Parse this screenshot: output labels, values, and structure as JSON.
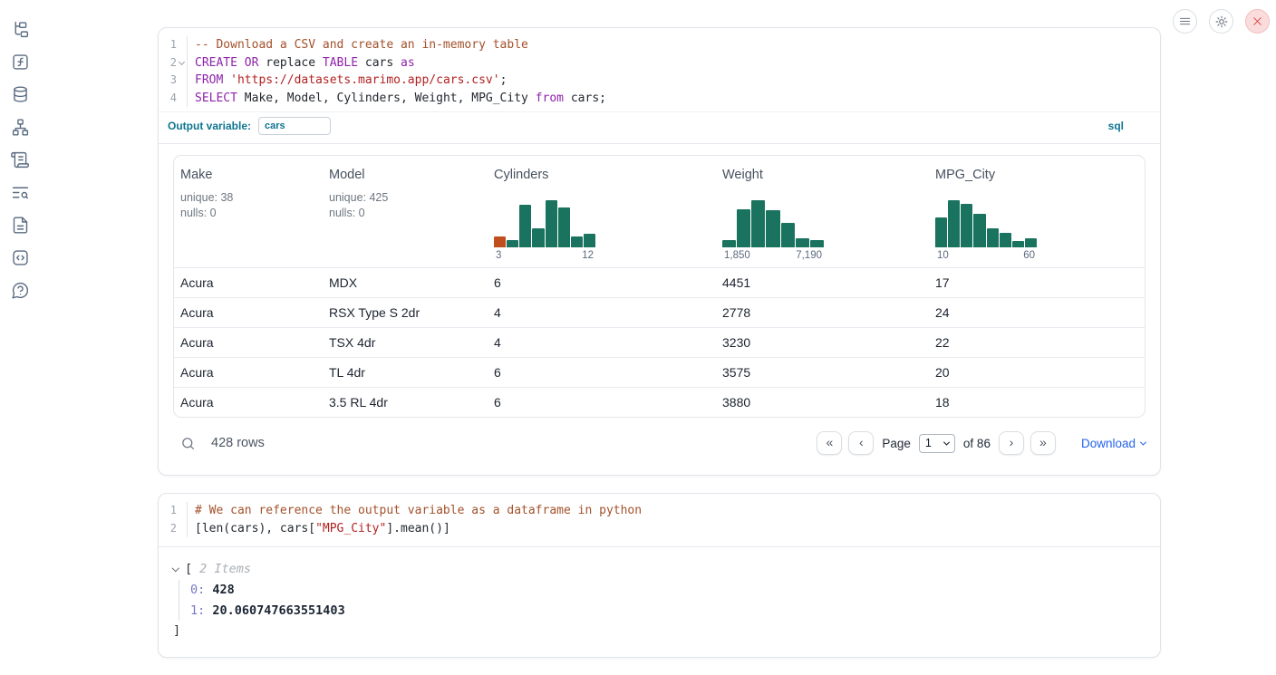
{
  "colors": {
    "histogram_bar": "#1a735f",
    "histogram_highlight": "#c14f1d",
    "accent_blue": "#2563eb",
    "label_teal": "#0e7490",
    "danger_red": "#d64545"
  },
  "sidebar": {
    "icons": [
      "file-tree",
      "function",
      "database",
      "network",
      "scroll",
      "search-list",
      "document",
      "code-box",
      "help"
    ]
  },
  "topbar": {
    "buttons": [
      "menu",
      "settings",
      "shutdown"
    ]
  },
  "cells": [
    {
      "language_badge": "sql",
      "meta_label": "Output variable:",
      "meta_value": "cars",
      "lines": [
        {
          "num": "1",
          "fold": false,
          "segments": [
            {
              "t": "-- Download a CSV and create an in-memory table",
              "c": "comment"
            }
          ]
        },
        {
          "num": "2",
          "fold": true,
          "segments": [
            {
              "t": "CREATE OR",
              "c": "keyword"
            },
            {
              "t": " replace ",
              "c": "plain"
            },
            {
              "t": "TABLE",
              "c": "keyword"
            },
            {
              "t": " cars ",
              "c": "plain"
            },
            {
              "t": "as",
              "c": "keyword"
            }
          ]
        },
        {
          "num": "3",
          "fold": false,
          "segments": [
            {
              "t": "FROM",
              "c": "keyword"
            },
            {
              "t": " ",
              "c": "plain"
            },
            {
              "t": "'https://datasets.marimo.app/cars.csv'",
              "c": "string"
            },
            {
              "t": ";",
              "c": "plain"
            }
          ]
        },
        {
          "num": "4",
          "fold": false,
          "segments": [
            {
              "t": "SELECT",
              "c": "keyword"
            },
            {
              "t": " Make, Model, Cylinders, Weight, MPG_City ",
              "c": "plain"
            },
            {
              "t": "from",
              "c": "keyword"
            },
            {
              "t": " cars;",
              "c": "plain"
            }
          ]
        }
      ]
    },
    {
      "lines": [
        {
          "num": "1",
          "fold": false,
          "segments": [
            {
              "t": "# We can reference the output variable as a dataframe in python",
              "c": "comment"
            }
          ]
        },
        {
          "num": "2",
          "fold": false,
          "segments": [
            {
              "t": "[len(cars), cars[",
              "c": "plain"
            },
            {
              "t": "\"MPG_City\"",
              "c": "string"
            },
            {
              "t": "].mean()]",
              "c": "plain"
            }
          ]
        }
      ]
    }
  ],
  "table": {
    "columns": [
      {
        "name": "Make",
        "stats": [
          "unique: 38",
          "nulls: 0"
        ]
      },
      {
        "name": "Model",
        "stats": [
          "unique: 425",
          "nulls: 0"
        ]
      },
      {
        "name": "Cylinders",
        "histogram": {
          "min_label": "3",
          "max_label": "12",
          "bars": [
            0.24,
            0.15,
            0.9,
            0.4,
            1.0,
            0.84,
            0.24,
            0.28
          ],
          "first_bar_color": "#c14f1d"
        }
      },
      {
        "name": "Weight",
        "histogram": {
          "min_label": "1,850",
          "max_label": "7,190",
          "bars": [
            0.16,
            0.8,
            1.0,
            0.78,
            0.52,
            0.2,
            0.16
          ]
        }
      },
      {
        "name": "MPG_City",
        "histogram": {
          "min_label": "10",
          "max_label": "60",
          "bars": [
            0.63,
            1.0,
            0.93,
            0.72,
            0.41,
            0.3,
            0.13,
            0.2
          ]
        }
      }
    ],
    "rows": [
      [
        "Acura",
        "MDX",
        "6",
        "4451",
        "17"
      ],
      [
        "Acura",
        "RSX Type S 2dr",
        "4",
        "2778",
        "24"
      ],
      [
        "Acura",
        "TSX 4dr",
        "4",
        "3230",
        "22"
      ],
      [
        "Acura",
        "TL 4dr",
        "6",
        "3575",
        "20"
      ],
      [
        "Acura",
        "3.5 RL 4dr",
        "6",
        "3880",
        "18"
      ]
    ],
    "footer": {
      "row_count": "428 rows",
      "page_label": "Page",
      "page_value": "1",
      "of_label": "of 86",
      "download_label": "Download"
    }
  },
  "result": {
    "bracket_open": "[",
    "items_label": "2 Items",
    "entries": [
      {
        "key": "0:",
        "value": "428"
      },
      {
        "key": "1:",
        "value": "20.060747663551403"
      }
    ],
    "bracket_close": "]"
  }
}
